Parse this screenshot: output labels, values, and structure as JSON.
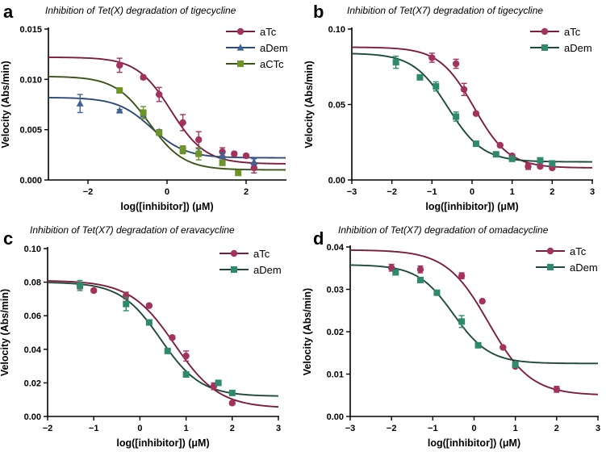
{
  "colors": {
    "aTc": "#a3335c",
    "aDem_a": "#3f6394",
    "aCTc": "#6c9428",
    "aDem_teal": "#2e8a6d",
    "curve_aTc": "#7d1c3f",
    "curve_aDem_a": "#2e4a78",
    "curve_aCTc": "#3d5419",
    "curve_aDem_teal": "#1e4a3a"
  },
  "chart_data": [
    {
      "panel": "a",
      "type": "scatter",
      "title": "Inhibition of Tet(X) degradation of tigecycline",
      "xlabel": "log([inhibitor]) (μM)",
      "ylabel": "Velocity (Abs/min)",
      "xlim": [
        -3,
        3
      ],
      "ylim": [
        0,
        0.015
      ],
      "xticks": [
        -2,
        0,
        2
      ],
      "xtick_labels": [
        "−2",
        "0",
        "2"
      ],
      "yticks": [
        0,
        0.005,
        0.01,
        0.015
      ],
      "ytick_labels": [
        "0.000",
        "0.005",
        "0.010",
        "0.015"
      ],
      "legend_position": "top-right",
      "series": [
        {
          "name": "aTc",
          "marker": "circle",
          "color_key": "aTc",
          "curve_key": "curve_aTc",
          "x": [
            -1.2,
            -0.6,
            -0.2,
            0.4,
            0.8,
            1.4,
            1.7,
            2.0,
            2.2
          ],
          "y": [
            0.0114,
            0.0102,
            0.0085,
            0.0057,
            0.004,
            0.0028,
            0.0026,
            0.0024,
            0.0012
          ],
          "err": [
            0.0007,
            0.0002,
            0.0007,
            0.0008,
            0.0008,
            0.0004,
            0.0002,
            0.0002,
            0.0005
          ],
          "fit": {
            "top": 0.0122,
            "bottom": 0.0016,
            "logIC50": 0.1,
            "hill": 1.0
          }
        },
        {
          "name": "aDem",
          "marker": "triangle",
          "color_key": "aDem_a",
          "curve_key": "curve_aDem_a",
          "x": [
            -2.2,
            -1.2,
            -0.6,
            -0.2,
            0.4,
            0.8,
            1.4,
            2.2
          ],
          "y": [
            0.0076,
            0.0069,
            0.0065,
            0.0048,
            0.003,
            0.0028,
            0.0024,
            0.0018
          ],
          "err": [
            0.0009,
            0.0001,
            0.0004,
            0.0002,
            0.0003,
            0.0003,
            0.0003,
            0.0003
          ],
          "fit": {
            "top": 0.0082,
            "bottom": 0.0022,
            "logIC50": -0.4,
            "hill": 1.0
          }
        },
        {
          "name": "aCTc",
          "marker": "square",
          "color_key": "aCTc",
          "curve_key": "curve_aCTc",
          "x": [
            -1.2,
            -0.6,
            -0.2,
            0.4,
            0.8,
            1.4,
            1.8
          ],
          "y": [
            0.0089,
            0.0067,
            0.0047,
            0.003,
            0.0026,
            0.0017,
            0.0007
          ],
          "err": [
            0.0002,
            0.0006,
            0.0002,
            0.0004,
            0.0006,
            0.0002,
            0.0001
          ],
          "fit": {
            "top": 0.0103,
            "bottom": 0.001,
            "logIC50": -0.45,
            "hill": 1.0
          }
        }
      ]
    },
    {
      "panel": "b",
      "type": "scatter",
      "title": "Inhibition of Tet(X7) degradation of tigecycline",
      "xlabel": "log([inhibitor]) (μM)",
      "ylabel": "Velocity (Abs/min)",
      "xlim": [
        -3,
        3
      ],
      "ylim": [
        0,
        0.1
      ],
      "xticks": [
        -3,
        -2,
        -1,
        0,
        1,
        2,
        3
      ],
      "xtick_labels": [
        "−3",
        "−2",
        "−1",
        "0",
        "1",
        "2",
        "3"
      ],
      "yticks": [
        0,
        0.05,
        0.1
      ],
      "ytick_labels": [
        "0.00",
        "0.05",
        "0.10"
      ],
      "legend_position": "top-right",
      "series": [
        {
          "name": "aTc",
          "marker": "circle",
          "color_key": "aTc",
          "curve_key": "curve_aTc",
          "x": [
            -1.0,
            -0.4,
            -0.2,
            0.1,
            0.7,
            1.0,
            1.4,
            1.7,
            2.0
          ],
          "y": [
            0.081,
            0.077,
            0.06,
            0.044,
            0.023,
            0.016,
            0.009,
            0.009,
            0.008
          ],
          "err": [
            0.003,
            0.003,
            0.004,
            0.001,
            0.001,
            0.001,
            0.002,
            0.001,
            0.001
          ],
          "fit": {
            "top": 0.088,
            "bottom": 0.008,
            "logIC50": 0.05,
            "hill": 1.0
          }
        },
        {
          "name": "aDem",
          "marker": "square",
          "color_key": "aDem_teal",
          "curve_key": "curve_aDem_teal",
          "x": [
            -1.9,
            -1.3,
            -0.9,
            -0.4,
            0.1,
            0.6,
            1.0,
            1.7,
            2.0
          ],
          "y": [
            0.078,
            0.068,
            0.062,
            0.042,
            0.024,
            0.017,
            0.014,
            0.013,
            0.011
          ],
          "err": [
            0.004,
            0.001,
            0.003,
            0.003,
            0.001,
            0.001,
            0.001,
            0.001,
            0.001
          ],
          "fit": {
            "top": 0.084,
            "bottom": 0.012,
            "logIC50": -0.6,
            "hill": 1.0
          }
        }
      ]
    },
    {
      "panel": "c",
      "type": "scatter",
      "title": "Inhibition of Tet(X7) degradation of eravacycline",
      "xlabel": "log([inhibitor]) (μM)",
      "ylabel": "Velocity (Abs/min)",
      "xlim": [
        -2,
        3
      ],
      "ylim": [
        0,
        0.1
      ],
      "xticks": [
        -2,
        -1,
        0,
        1,
        2,
        3
      ],
      "xtick_labels": [
        "−2",
        "−1",
        "0",
        "1",
        "2",
        "3"
      ],
      "yticks": [
        0,
        0.02,
        0.04,
        0.06,
        0.08,
        0.1
      ],
      "ytick_labels": [
        "0.00",
        "0.02",
        "0.04",
        "0.06",
        "0.08",
        "0.10"
      ],
      "legend_position": "top-right",
      "series": [
        {
          "name": "aTc",
          "marker": "circle",
          "color_key": "aTc",
          "curve_key": "curve_aTc",
          "x": [
            -1.3,
            -1.0,
            -0.3,
            0.2,
            0.7,
            1.0,
            1.6,
            2.0
          ],
          "y": [
            0.078,
            0.075,
            0.072,
            0.066,
            0.047,
            0.036,
            0.018,
            0.008
          ],
          "err": [
            0.002,
            0.001,
            0.002,
            0.001,
            0.001,
            0.003,
            0.002,
            0.001
          ],
          "fit": {
            "top": 0.081,
            "bottom": 0.005,
            "logIC50": 0.75,
            "hill": 0.9
          }
        },
        {
          "name": "aDem",
          "marker": "square",
          "color_key": "aDem_teal",
          "curve_key": "curve_aDem_teal",
          "x": [
            -1.3,
            -0.3,
            0.2,
            0.6,
            1.0,
            1.7,
            2.0
          ],
          "y": [
            0.078,
            0.067,
            0.056,
            0.039,
            0.025,
            0.02,
            0.014
          ],
          "err": [
            0.003,
            0.004,
            0.001,
            0.001,
            0.001,
            0.001,
            0.001
          ],
          "fit": {
            "top": 0.08,
            "bottom": 0.012,
            "logIC50": 0.45,
            "hill": 1.0
          }
        }
      ]
    },
    {
      "panel": "d",
      "type": "scatter",
      "title": "Inhibition of Tet(X7) degradation of omadacycline",
      "xlabel": "log([inhibitor]) (μM)",
      "ylabel": "Velocity (Abs/min)",
      "xlim": [
        -3,
        3
      ],
      "ylim": [
        0,
        0.04
      ],
      "xticks": [
        -3,
        -2,
        -1,
        0,
        1,
        2,
        3
      ],
      "xtick_labels": [
        "−3",
        "−2",
        "−1",
        "0",
        "1",
        "2",
        "3"
      ],
      "yticks": [
        0,
        0.01,
        0.02,
        0.03,
        0.04
      ],
      "ytick_labels": [
        "0.00",
        "0.01",
        "0.02",
        "0.03",
        "0.04"
      ],
      "legend_position": "top-right",
      "series": [
        {
          "name": "aTc",
          "marker": "circle",
          "color_key": "aTc",
          "curve_key": "curve_aTc",
          "x": [
            -2.0,
            -1.3,
            -0.3,
            0.2,
            0.7,
            1.0,
            2.0
          ],
          "y": [
            0.0351,
            0.0347,
            0.0332,
            0.0272,
            0.0163,
            0.0118,
            0.0064
          ],
          "err": [
            0.0008,
            0.0008,
            0.0007,
            0.0003,
            0.0003,
            0.0003,
            0.0007
          ],
          "fit": {
            "top": 0.0393,
            "bottom": 0.005,
            "logIC50": 0.35,
            "hill": 0.85
          }
        },
        {
          "name": "aDem",
          "marker": "square",
          "color_key": "aDem_teal",
          "curve_key": "curve_aDem_teal",
          "x": [
            -1.9,
            -1.3,
            -0.9,
            -0.3,
            0.1,
            1.0
          ],
          "y": [
            0.034,
            0.0322,
            0.0292,
            0.0224,
            0.0168,
            0.0122
          ],
          "err": [
            0.0005,
            0.0005,
            0.0005,
            0.0014,
            0.0003,
            0.0003
          ],
          "fit": {
            "top": 0.0358,
            "bottom": 0.0125,
            "logIC50": -0.5,
            "hill": 1.0
          }
        }
      ]
    }
  ]
}
